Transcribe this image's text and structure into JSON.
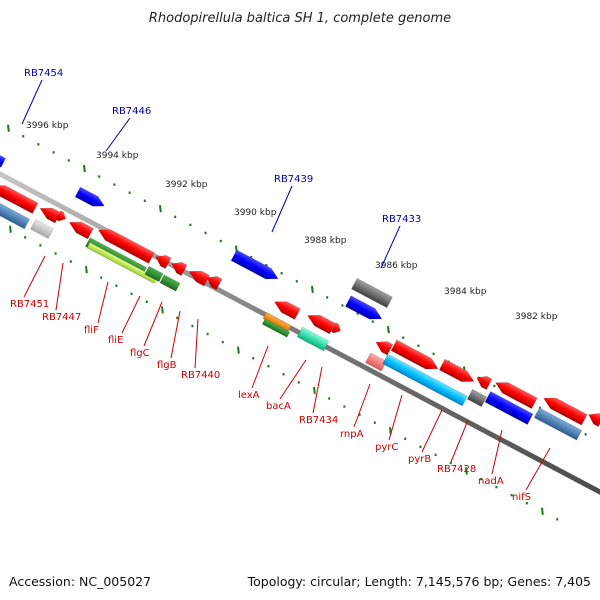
{
  "title": "Rhodopirellula baltica SH 1, complete genome",
  "footer": {
    "accession": "Accession: NC_005027",
    "summary": "Topology: circular; Length: 7,145,576 bp; Genes: 7,405"
  },
  "colors": {
    "forward_label": "#0000aa",
    "reverse_label": "#cc0000",
    "backbone": "#808080",
    "tick": "#1a7a1a"
  },
  "ticks": [
    {
      "label": "3996 kbp"
    },
    {
      "label": "3994 kbp"
    },
    {
      "label": "3992 kbp"
    },
    {
      "label": "3990 kbp"
    },
    {
      "label": "3988 kbp"
    },
    {
      "label": "3986 kbp"
    },
    {
      "label": "3984 kbp"
    },
    {
      "label": "3982 kbp"
    }
  ],
  "forward_labels": [
    {
      "name": "RB7454"
    },
    {
      "name": "RB7446"
    },
    {
      "name": "RB7439"
    },
    {
      "name": "RB7433"
    }
  ],
  "reverse_labels": [
    {
      "name": "RB7451"
    },
    {
      "name": "RB7447"
    },
    {
      "name": "fliF"
    },
    {
      "name": "fliE"
    },
    {
      "name": "flgC"
    },
    {
      "name": "flgB"
    },
    {
      "name": "RB7440"
    },
    {
      "name": "lexA"
    },
    {
      "name": "bacA"
    },
    {
      "name": "RB7434"
    },
    {
      "name": "rnpA"
    },
    {
      "name": "pyrC"
    },
    {
      "name": "pyrB"
    },
    {
      "name": "RB7428"
    },
    {
      "name": "nadA"
    },
    {
      "name": "nifS"
    }
  ]
}
